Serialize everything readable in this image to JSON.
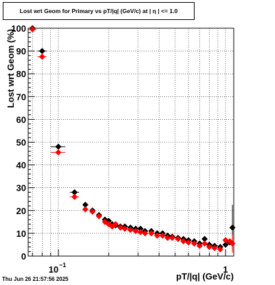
{
  "title": "Lost wrt Geom for Primary vs pT/|q| (GeV/c) at |  η  | <= 1.0",
  "footer": "Thu Jun 26 21:57:56 2025",
  "chart_data": {
    "type": "scatter",
    "title": "Lost wrt Geom for Primary vs pT/|q| (GeV/c) at |  η  | <= 1.0",
    "xlabel": "pT/|q| (GeV/c)",
    "ylabel": "Lost wrt Geom (%)",
    "x_scale": "log",
    "xlim": [
      0.066,
      1.12
    ],
    "ylim": [
      0,
      100
    ],
    "y_ticks": [
      0,
      10,
      20,
      30,
      40,
      50,
      60,
      70,
      80,
      90,
      100
    ],
    "x_tick_labels": [
      {
        "value": 0.1,
        "base": "10",
        "exp": "−1"
      },
      {
        "value": 1,
        "base": "1",
        "exp": ""
      }
    ],
    "grid": true,
    "series": [
      {
        "color": "#000000",
        "marker": "diamond",
        "points": [
          {
            "x": 0.07,
            "y": 100,
            "xerr": 0.004
          },
          {
            "x": 0.08,
            "y": 90,
            "xerr": 0.005
          },
          {
            "x": 0.1,
            "y": 48,
            "xerr": 0.01
          },
          {
            "x": 0.125,
            "y": 28,
            "xerr": 0.008
          },
          {
            "x": 0.145,
            "y": 22.5
          },
          {
            "x": 0.16,
            "y": 20
          },
          {
            "x": 0.175,
            "y": 18
          },
          {
            "x": 0.19,
            "y": 16
          },
          {
            "x": 0.2,
            "y": 15.5
          },
          {
            "x": 0.21,
            "y": 14
          },
          {
            "x": 0.22,
            "y": 13.5
          },
          {
            "x": 0.235,
            "y": 13
          },
          {
            "x": 0.25,
            "y": 13
          },
          {
            "x": 0.27,
            "y": 12.5
          },
          {
            "x": 0.29,
            "y": 12
          },
          {
            "x": 0.31,
            "y": 12
          },
          {
            "x": 0.33,
            "y": 11
          },
          {
            "x": 0.36,
            "y": 11
          },
          {
            "x": 0.39,
            "y": 10
          },
          {
            "x": 0.42,
            "y": 10
          },
          {
            "x": 0.45,
            "y": 9
          },
          {
            "x": 0.48,
            "y": 8.5
          },
          {
            "x": 0.52,
            "y": 8
          },
          {
            "x": 0.56,
            "y": 7.5
          },
          {
            "x": 0.6,
            "y": 7
          },
          {
            "x": 0.65,
            "y": 6.5
          },
          {
            "x": 0.7,
            "y": 5.5
          },
          {
            "x": 0.75,
            "y": 7.5
          },
          {
            "x": 0.8,
            "y": 5
          },
          {
            "x": 0.86,
            "y": 4.5
          },
          {
            "x": 0.93,
            "y": 4
          },
          {
            "x": 1.0,
            "y": 5
          },
          {
            "x": 1.06,
            "y": 6
          },
          {
            "x": 1.1,
            "y": 12.5,
            "yerr": 10
          }
        ]
      },
      {
        "color": "#ff0000",
        "marker": "diamond",
        "points": [
          {
            "x": 0.07,
            "y": 99.5,
            "xerr": 0.004
          },
          {
            "x": 0.08,
            "y": 87.5,
            "xerr": 0.005
          },
          {
            "x": 0.1,
            "y": 45.5,
            "xerr": 0.01
          },
          {
            "x": 0.125,
            "y": 26,
            "xerr": 0.008
          },
          {
            "x": 0.145,
            "y": 20.5
          },
          {
            "x": 0.16,
            "y": 19.5
          },
          {
            "x": 0.175,
            "y": 17.5
          },
          {
            "x": 0.19,
            "y": 15
          },
          {
            "x": 0.2,
            "y": 14
          },
          {
            "x": 0.21,
            "y": 13
          },
          {
            "x": 0.22,
            "y": 14
          },
          {
            "x": 0.235,
            "y": 12.5
          },
          {
            "x": 0.25,
            "y": 12
          },
          {
            "x": 0.27,
            "y": 11.5
          },
          {
            "x": 0.29,
            "y": 11
          },
          {
            "x": 0.31,
            "y": 10.5
          },
          {
            "x": 0.33,
            "y": 10
          },
          {
            "x": 0.36,
            "y": 10
          },
          {
            "x": 0.39,
            "y": 9
          },
          {
            "x": 0.42,
            "y": 9
          },
          {
            "x": 0.45,
            "y": 8
          },
          {
            "x": 0.48,
            "y": 8
          },
          {
            "x": 0.52,
            "y": 7.5
          },
          {
            "x": 0.56,
            "y": 6.5
          },
          {
            "x": 0.6,
            "y": 6
          },
          {
            "x": 0.65,
            "y": 5.5
          },
          {
            "x": 0.7,
            "y": 4.5
          },
          {
            "x": 0.75,
            "y": 5.5
          },
          {
            "x": 0.8,
            "y": 4
          },
          {
            "x": 0.86,
            "y": 3.5
          },
          {
            "x": 0.93,
            "y": 3
          },
          {
            "x": 1.0,
            "y": 7
          },
          {
            "x": 1.06,
            "y": 6.5
          },
          {
            "x": 1.1,
            "y": 5.5,
            "yerr": 4
          }
        ]
      }
    ]
  }
}
